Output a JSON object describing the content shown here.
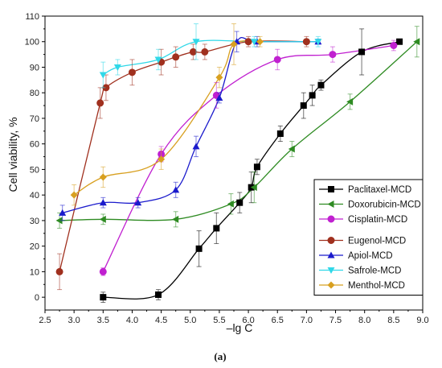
{
  "chart_data": {
    "type": "scatter",
    "xlabel": "–lg C",
    "ylabel": "Cell viability, %",
    "caption": "(a)",
    "xlim": [
      2.5,
      9.0
    ],
    "ylim": [
      -5,
      110
    ],
    "xticks": [
      "2.5",
      "3.0",
      "3.5",
      "4.0",
      "4.5",
      "5.0",
      "5.5",
      "6.0",
      "6.5",
      "7.0",
      "7.5",
      "8.0",
      "8.5",
      "9.0"
    ],
    "yticks": [
      "0",
      "10",
      "20",
      "30",
      "40",
      "50",
      "60",
      "70",
      "80",
      "90",
      "100",
      "110"
    ],
    "legend_position": "bottom-right",
    "series": [
      {
        "name": "Paclitaxel-MCD",
        "color": "#000000",
        "marker": "square",
        "points": [
          [
            3.5,
            0
          ],
          [
            4.45,
            1
          ],
          [
            5.15,
            19
          ],
          [
            5.45,
            27
          ],
          [
            5.85,
            37
          ],
          [
            6.05,
            43
          ],
          [
            6.15,
            51
          ],
          [
            6.55,
            64
          ],
          [
            6.95,
            75
          ],
          [
            7.1,
            79
          ],
          [
            7.25,
            83
          ],
          [
            7.95,
            96
          ],
          [
            8.6,
            100
          ]
        ],
        "errors": [
          2,
          2,
          7,
          6,
          4,
          6,
          3,
          3,
          5,
          4,
          2,
          9,
          0
        ]
      },
      {
        "name": "Doxorubicin-MCD",
        "color": "#2e8b22",
        "marker": "triangle-left",
        "points": [
          [
            2.75,
            30
          ],
          [
            3.5,
            30.5
          ],
          [
            4.75,
            30.5
          ],
          [
            5.7,
            36.5
          ],
          [
            6.1,
            43
          ],
          [
            6.75,
            58
          ],
          [
            7.75,
            76.5
          ],
          [
            8.9,
            100
          ]
        ],
        "errors": [
          3,
          2,
          3,
          4,
          6,
          3,
          3,
          6
        ]
      },
      {
        "name": "Cisplatin-MCD",
        "color": "#c020d0",
        "marker": "circle",
        "points": [
          [
            3.5,
            10
          ],
          [
            4.5,
            56
          ],
          [
            5.45,
            79
          ],
          [
            6.5,
            93
          ],
          [
            7.45,
            95
          ],
          [
            8.5,
            98.5
          ]
        ],
        "errors": [
          1.5,
          3,
          5,
          4,
          3,
          2
        ]
      },
      {
        "name": "Eugenol-MCD",
        "color": "#a0301e",
        "marker": "circle",
        "points": [
          [
            2.75,
            10
          ],
          [
            3.45,
            76
          ],
          [
            3.55,
            82
          ],
          [
            4.0,
            88
          ],
          [
            4.5,
            92
          ],
          [
            4.75,
            94
          ],
          [
            5.05,
            96
          ],
          [
            5.25,
            96
          ],
          [
            6.0,
            100
          ],
          [
            7.0,
            100
          ]
        ],
        "errors": [
          7,
          6,
          5,
          5,
          5,
          4,
          3,
          3,
          2,
          2
        ]
      },
      {
        "name": "Apiol-MCD",
        "color": "#1a1acc",
        "marker": "triangle-up",
        "points": [
          [
            2.8,
            33
          ],
          [
            3.5,
            37
          ],
          [
            4.1,
            37
          ],
          [
            4.75,
            42
          ],
          [
            5.1,
            59
          ],
          [
            5.5,
            78
          ],
          [
            5.8,
            100
          ],
          [
            6.15,
            100
          ],
          [
            7.2,
            100
          ]
        ],
        "errors": [
          3,
          2,
          2,
          3,
          4,
          2,
          4,
          2,
          1
        ]
      },
      {
        "name": "Safrole-MCD",
        "color": "#30d8e8",
        "marker": "triangle-down",
        "points": [
          [
            3.5,
            87
          ],
          [
            3.75,
            90
          ],
          [
            4.45,
            93
          ],
          [
            5.1,
            100
          ],
          [
            6.1,
            100
          ],
          [
            7.2,
            100
          ]
        ],
        "errors": [
          5,
          3,
          4,
          7,
          2,
          2
        ]
      },
      {
        "name": "Menthol-MCD",
        "color": "#d8a020",
        "marker": "diamond",
        "points": [
          [
            3.0,
            40
          ],
          [
            3.5,
            47
          ],
          [
            4.5,
            54
          ],
          [
            5.5,
            86
          ],
          [
            5.75,
            99
          ],
          [
            6.2,
            100
          ]
        ],
        "errors": [
          4,
          4,
          4,
          4,
          8,
          2
        ]
      }
    ]
  }
}
